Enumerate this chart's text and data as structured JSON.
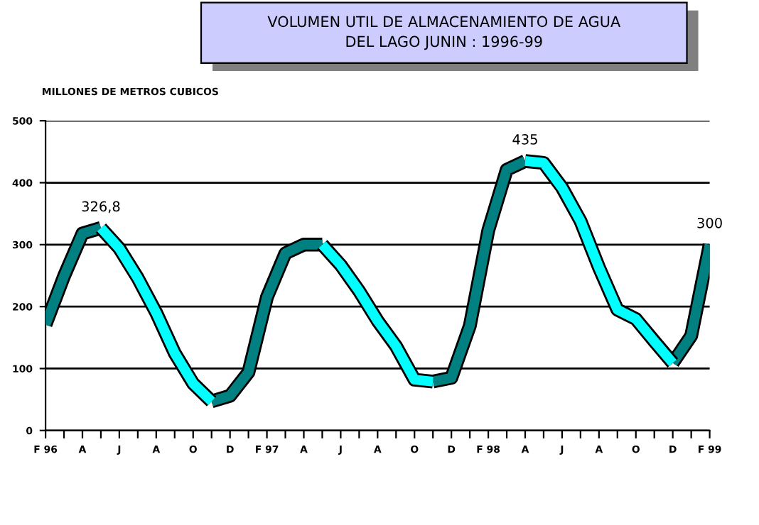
{
  "chart_data": {
    "type": "line",
    "title": "VOLUMEN UTIL DE ALMACENAMIENTO DE AGUA\nDEL LAGO JUNIN : 1996-99",
    "ylabel": "MILLONES DE METROS CUBICOS",
    "categories": [
      "F 96",
      null,
      "A",
      null,
      "J",
      null,
      "A",
      null,
      "O",
      null,
      "D",
      null,
      "F 97",
      null,
      "A",
      null,
      "J",
      null,
      "A",
      null,
      "O",
      null,
      "D",
      null,
      "F 98",
      null,
      "A",
      null,
      "J",
      null,
      "A",
      null,
      "O",
      null,
      "D",
      null,
      "F 99"
    ],
    "series": [
      {
        "color": "#008080",
        "values": [
          171,
          249,
          318,
          326.8,
          null,
          null,
          null,
          null,
          null,
          47,
          56,
          94,
          215,
          286,
          300,
          300,
          null,
          null,
          null,
          null,
          null,
          79,
          85,
          169,
          323,
          421,
          435,
          null,
          null,
          null,
          null,
          null,
          null,
          null,
          109,
          153,
          300
        ],
        "value_labels": [
          null,
          null,
          null,
          "326,8",
          null,
          null,
          null,
          null,
          null,
          null,
          null,
          null,
          null,
          null,
          null,
          null,
          null,
          null,
          null,
          null,
          null,
          null,
          null,
          null,
          null,
          null,
          "435",
          null,
          null,
          null,
          null,
          null,
          null,
          null,
          null,
          null,
          "300"
        ]
      },
      {
        "color": "#00ffff",
        "values": [
          null,
          null,
          null,
          326.8,
          294,
          246,
          190,
          125,
          76,
          47,
          null,
          null,
          null,
          null,
          null,
          300,
          267,
          225,
          177,
          136,
          82,
          79,
          null,
          null,
          null,
          null,
          435,
          432,
          392,
          338,
          263,
          195,
          180,
          144,
          109,
          null,
          null
        ]
      }
    ],
    "ylim": [
      0,
      500
    ],
    "yticks": [
      0,
      100,
      200,
      300,
      400,
      500
    ],
    "grid": "y",
    "legend": false,
    "marker": "none",
    "line_style": "solid"
  }
}
